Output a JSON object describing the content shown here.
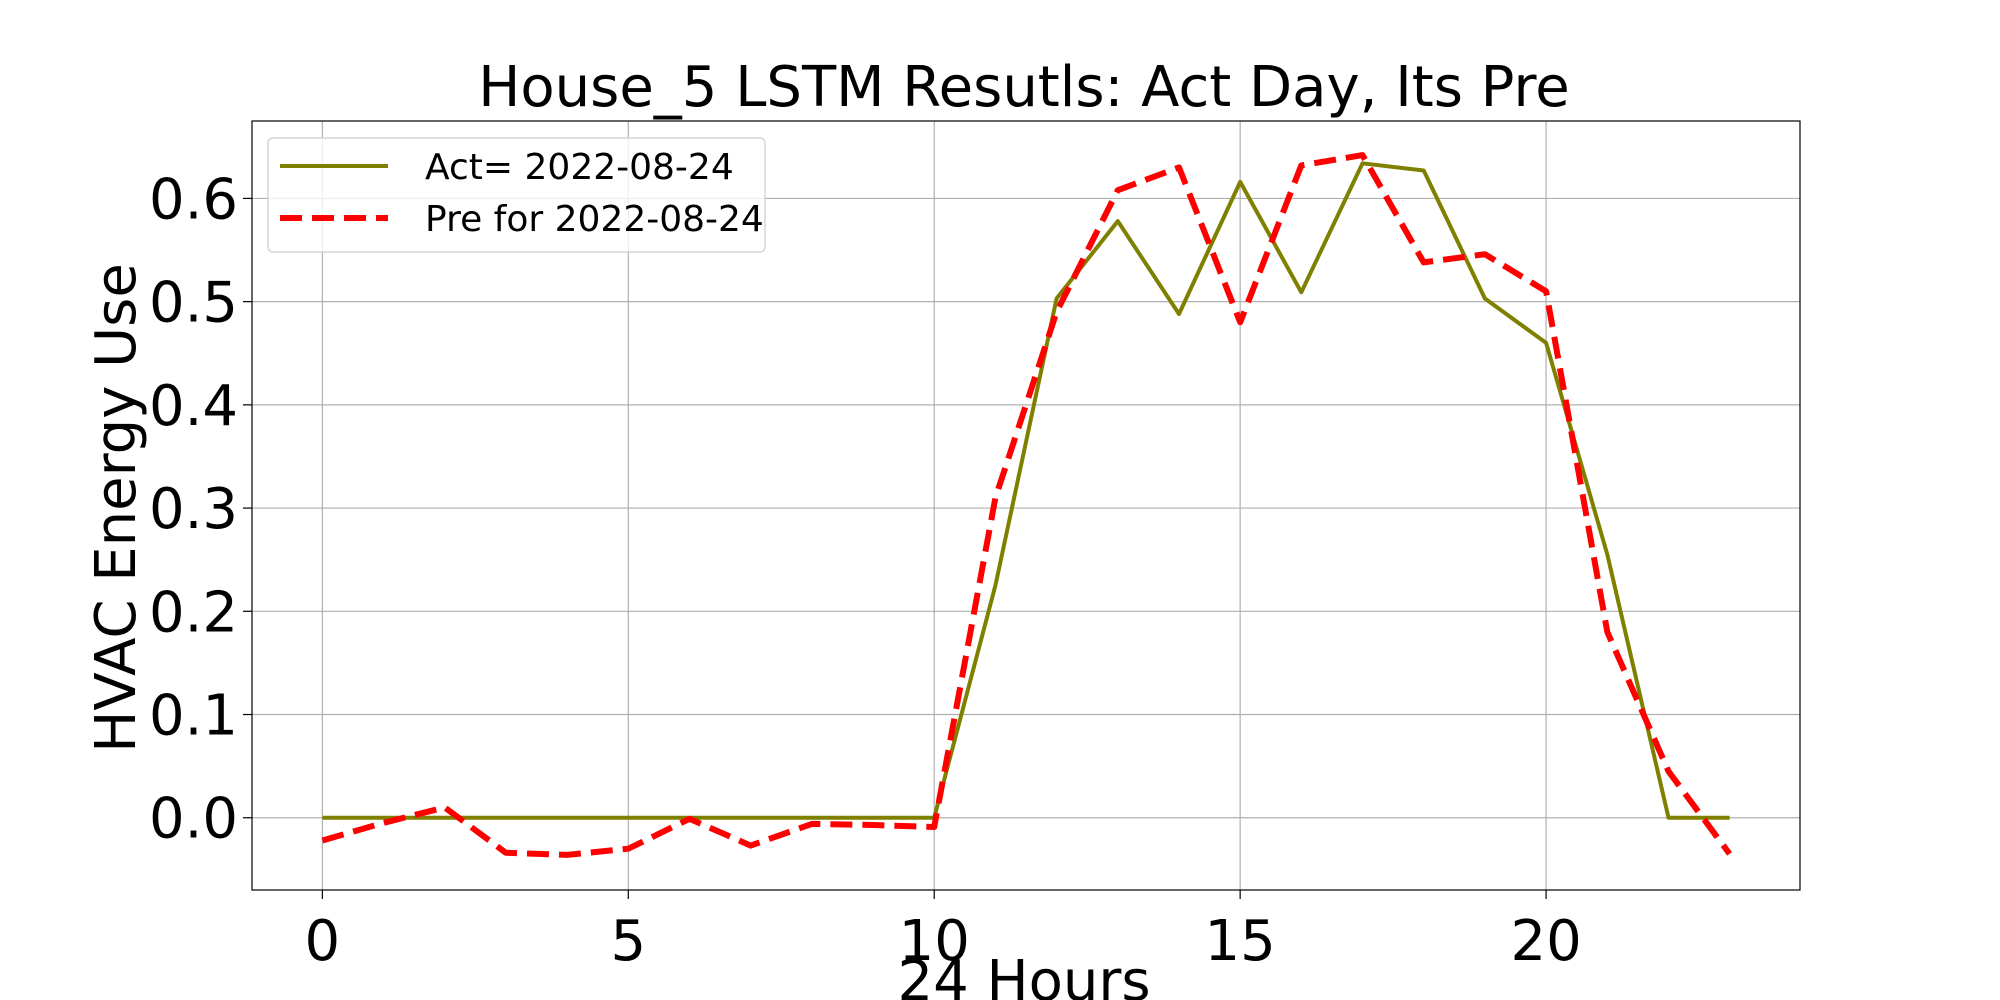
{
  "chart_data": {
    "type": "line",
    "title": "House_5 LSTM Resutls: Act Day, Its Pre",
    "xlabel": "24 Hours",
    "ylabel": "HVAC Energy Use",
    "xlim": [
      -1.15,
      24.15
    ],
    "ylim": [
      -0.07,
      0.675
    ],
    "xticks": [
      0,
      5,
      10,
      15,
      20
    ],
    "yticks": [
      0.0,
      0.1,
      0.2,
      0.3,
      0.4,
      0.5,
      0.6
    ],
    "ytick_labels": [
      "0.0",
      "0.1",
      "0.2",
      "0.3",
      "0.4",
      "0.5",
      "0.6"
    ],
    "grid": true,
    "legend_position": "top-left",
    "x": [
      0,
      1,
      2,
      3,
      4,
      5,
      6,
      7,
      8,
      9,
      10,
      11,
      12,
      13,
      14,
      15,
      16,
      17,
      18,
      19,
      20,
      21,
      22,
      23
    ],
    "series": [
      {
        "name": "Act= 2022-08-24",
        "color": "#808000",
        "style": "solid",
        "values": [
          0,
          0,
          0,
          0,
          0,
          0,
          0,
          0,
          0,
          0,
          0,
          0.225,
          0.503,
          0.578,
          0.488,
          0.616,
          0.509,
          0.634,
          0.627,
          0.503,
          0.46,
          0.255,
          0.0,
          0.0
        ]
      },
      {
        "name": "Pre for 2022-08-24",
        "color": "#ff0000",
        "style": "dashed",
        "values": [
          -0.022,
          -0.005,
          0.01,
          -0.034,
          -0.036,
          -0.03,
          -0.001,
          -0.027,
          -0.006,
          -0.007,
          -0.009,
          0.31,
          0.49,
          0.608,
          0.63,
          0.48,
          0.632,
          0.642,
          0.538,
          0.546,
          0.51,
          0.18,
          0.045,
          -0.035
        ]
      }
    ]
  }
}
